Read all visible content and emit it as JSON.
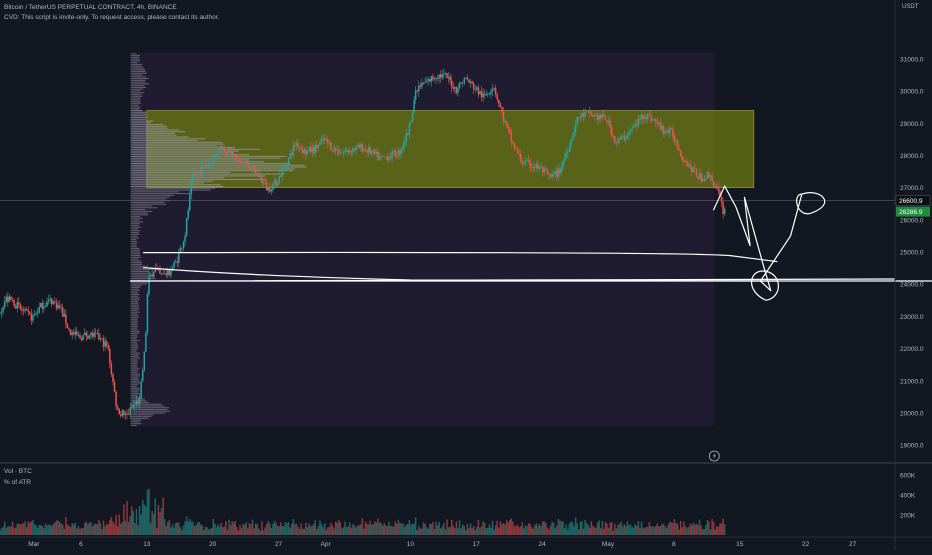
{
  "header": {
    "symbol_line": "Bitcoin / TetherUS PERPETUAL CONTRACT, 4h, BINANCE",
    "cvd_line": "CVD: This script is invite-only. To request access, please contact its author.",
    "currency": "USDT"
  },
  "colors": {
    "background": "#131722",
    "up": "#26a69a",
    "down": "#ef5350",
    "value_area": "#6b7a12",
    "profile": "#9598a1",
    "vp_box": "#2a1f3d",
    "drawing": "#ffffff",
    "price_badge": "#1e8e3e",
    "crosshair_badge": "#0c0e15"
  },
  "volume_pane": {
    "title": "Vol · BTC",
    "subtitle": "% of ATR",
    "y_ticks": [
      "600K",
      "400K",
      "200K"
    ],
    "y_tick_values": [
      600000,
      400000,
      200000
    ]
  },
  "price_labels": {
    "crosshair_price": "26600.9",
    "last_price": "26286.9"
  },
  "chart_data": {
    "type": "candlestick",
    "symbol": "Bitcoin / TetherUS PERPETUAL CONTRACT",
    "interval": "4h",
    "exchange": "BINANCE",
    "y_ticks": [
      "31000.0",
      "30000.0",
      "29000.0",
      "28000.0",
      "27000.0",
      "26000.0",
      "25000.0",
      "24000.0",
      "23000.0",
      "22000.0",
      "21000.0",
      "20000.0",
      "19000.0"
    ],
    "y_tick_values": [
      31000,
      30000,
      29000,
      28000,
      27000,
      26000,
      25000,
      24000,
      23000,
      22000,
      21000,
      20000,
      19000
    ],
    "ylim": [
      18600,
      31900
    ],
    "x_ticks": [
      "Mar",
      "6",
      "13",
      "20",
      "27",
      "Apr",
      "10",
      "17",
      "24",
      "May",
      "8",
      "15",
      "22",
      "27"
    ],
    "x_tick_values": [
      0,
      5,
      12,
      19,
      26,
      31,
      40,
      47,
      54,
      61,
      68,
      75,
      82,
      87
    ],
    "xlim": [
      -3.6,
      91.5
    ],
    "x_unit": "days since Feb 28",
    "price_path": [
      [
        -3.6,
        23100
      ],
      [
        -2.8,
        23550
      ],
      [
        -2,
        23450
      ],
      [
        -1,
        23150
      ],
      [
        0,
        22950
      ],
      [
        1,
        23350
      ],
      [
        2,
        23500
      ],
      [
        3,
        23250
      ],
      [
        4,
        22500
      ],
      [
        5,
        22350
      ],
      [
        6,
        22450
      ],
      [
        7,
        22350
      ],
      [
        8,
        22050
      ],
      [
        9,
        20100
      ],
      [
        10,
        19900
      ],
      [
        10.8,
        20250
      ],
      [
        11.4,
        20400
      ],
      [
        12.0,
        22100
      ],
      [
        12.3,
        24100
      ],
      [
        13,
        24500
      ],
      [
        13.6,
        24250
      ],
      [
        14.5,
        24350
      ],
      [
        15.3,
        24700
      ],
      [
        16.2,
        25500
      ],
      [
        17,
        27300
      ],
      [
        18,
        27600
      ],
      [
        19,
        27800
      ],
      [
        20,
        28300
      ],
      [
        21,
        28100
      ],
      [
        22,
        27800
      ],
      [
        23,
        27700
      ],
      [
        24,
        27400
      ],
      [
        25,
        26950
      ],
      [
        26,
        27200
      ],
      [
        27,
        27750
      ],
      [
        28,
        28400
      ],
      [
        29,
        28100
      ],
      [
        30,
        28200
      ],
      [
        31,
        28500
      ],
      [
        32,
        28200
      ],
      [
        33,
        28100
      ],
      [
        34,
        28200
      ],
      [
        35,
        28250
      ],
      [
        36,
        28100
      ],
      [
        37,
        27900
      ],
      [
        38,
        28000
      ],
      [
        39,
        28100
      ],
      [
        40,
        28800
      ],
      [
        40.6,
        29800
      ],
      [
        41,
        30100
      ],
      [
        42,
        30300
      ],
      [
        43,
        30500
      ],
      [
        44,
        30450
      ],
      [
        45,
        30050
      ],
      [
        46,
        30400
      ],
      [
        47,
        30100
      ],
      [
        48,
        29800
      ],
      [
        49,
        30200
      ],
      [
        50,
        29200
      ],
      [
        51,
        28400
      ],
      [
        52,
        27800
      ],
      [
        53,
        27700
      ],
      [
        54,
        27600
      ],
      [
        55,
        27300
      ],
      [
        56,
        27500
      ],
      [
        57,
        28300
      ],
      [
        58,
        29200
      ],
      [
        59,
        29300
      ],
      [
        60,
        29200
      ],
      [
        61,
        29150
      ],
      [
        62,
        28400
      ],
      [
        63,
        28600
      ],
      [
        64,
        28900
      ],
      [
        65,
        29300
      ],
      [
        66,
        29100
      ],
      [
        67,
        28800
      ],
      [
        68,
        28700
      ],
      [
        69,
        28000
      ],
      [
        70,
        27600
      ],
      [
        71,
        27300
      ],
      [
        72,
        27400
      ],
      [
        72.8,
        26900
      ],
      [
        73.4,
        26300
      ]
    ],
    "value_area": {
      "high": 29400,
      "low": 27000,
      "x_start": 12.0,
      "x_end": 76.5
    },
    "volume_profile_box": {
      "high": 31200,
      "low": 19600,
      "x_start": 10.6,
      "x_end": 72.3
    },
    "volume_profile_poc": 27700,
    "horizontal_levels": [
      26600.9,
      24950,
      24100
    ],
    "last_price": 26286.9,
    "annotation_date_marker_x": 72.3
  }
}
